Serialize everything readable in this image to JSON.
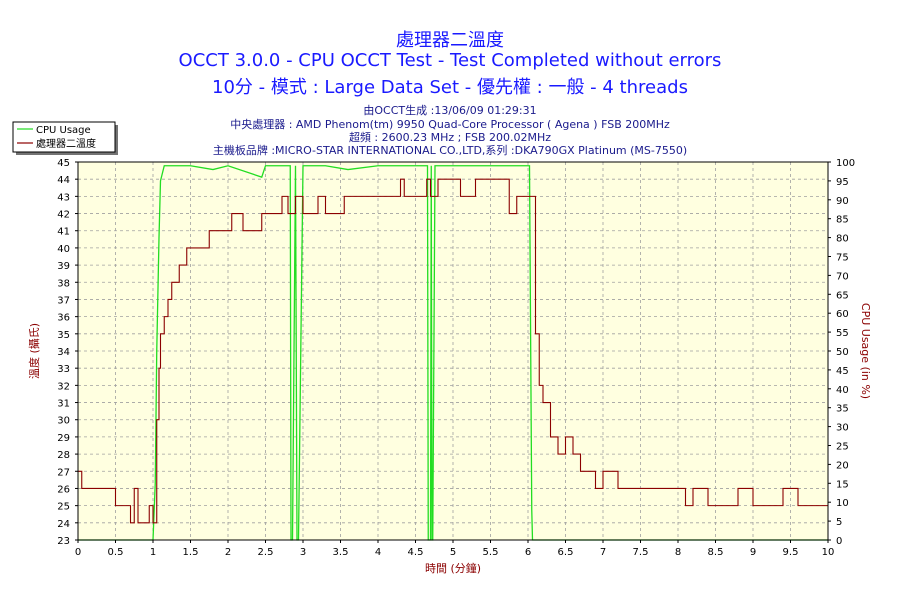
{
  "header": {
    "title_main": "處理器二溫度",
    "title_line2": "OCCT 3.0.0 - CPU OCCT Test - Test Completed without errors",
    "title_line3": "10分 - 模式 : Large Data Set - 優先權 : 一般 - 4 threads",
    "info_generated": "由OCCT生成 :13/06/09 01:29:31",
    "info_cpu": "中央處理器 : AMD Phenom(tm) 9950 Quad-Core Processor ( Agena ) FSB 200MHz",
    "info_clock": "超頻 : 2600.23 MHz ; FSB 200.02MHz",
    "info_board": "主機板品牌 :MICRO-STAR INTERNATIONAL CO.,LTD,系列 :DKA790GX Platinum (MS-7550)"
  },
  "colors": {
    "usage": "#22dd22",
    "temp": "#8b0000",
    "axis_text_left": "#8b0000",
    "axis_text_bottom": "#8b0000",
    "plot_bg": "#ffffe0",
    "grid": "#a0a0a0"
  },
  "chart_data": {
    "type": "line",
    "xlabel": "時間 (分鐘)",
    "ylabel": "溫度 (攝氏)",
    "y2label": "CPU Usage (in %)",
    "xlim": [
      0,
      10
    ],
    "ylim": [
      23,
      45
    ],
    "y2lim": [
      0,
      100
    ],
    "x_ticks": [
      "0",
      "0.5",
      "1",
      "1.5",
      "2",
      "2.5",
      "3",
      "3.5",
      "4",
      "4.5",
      "5",
      "5.5",
      "6",
      "6.5",
      "7",
      "7.5",
      "8",
      "8.5",
      "9",
      "9.5",
      "10"
    ],
    "y_ticks": [
      "23",
      "24",
      "25",
      "26",
      "27",
      "28",
      "29",
      "30",
      "31",
      "32",
      "33",
      "34",
      "35",
      "36",
      "37",
      "38",
      "39",
      "40",
      "41",
      "42",
      "43",
      "44",
      "45"
    ],
    "y2_ticks": [
      "0",
      "5",
      "10",
      "15",
      "20",
      "25",
      "30",
      "35",
      "40",
      "45",
      "50",
      "55",
      "60",
      "65",
      "70",
      "75",
      "80",
      "85",
      "90",
      "95",
      "100"
    ],
    "grid": true,
    "legend_position": "top-left",
    "series": [
      {
        "name": "CPU Usage",
        "axis": "right",
        "x": [
          0,
          0.98,
          1.0,
          1.03,
          1.05,
          1.08,
          1.1,
          1.15,
          1.2,
          1.5,
          1.8,
          2.0,
          2.45,
          2.5,
          2.8,
          2.83,
          2.84,
          2.86,
          2.9,
          2.92,
          2.94,
          3.0,
          3.3,
          3.6,
          4.0,
          4.6,
          4.66,
          4.67,
          4.7,
          4.71,
          4.72,
          4.73,
          4.76,
          5.0,
          5.5,
          5.98,
          6.02,
          6.05,
          6.06,
          10
        ],
        "y": [
          0,
          0,
          0,
          15,
          50,
          80,
          95,
          99,
          99,
          99,
          98,
          99,
          96,
          99,
          99,
          99,
          0,
          0,
          99,
          0,
          0,
          99,
          99,
          98,
          99,
          99,
          99,
          0,
          0,
          99,
          0,
          0,
          99,
          99,
          99,
          99,
          99,
          8,
          0,
          0
        ]
      },
      {
        "name": "處理器二溫度",
        "axis": "left",
        "x": [
          0,
          0.05,
          0.2,
          0.5,
          0.6,
          0.7,
          0.75,
          0.8,
          0.85,
          0.95,
          1.0,
          1.05,
          1.08,
          1.1,
          1.15,
          1.2,
          1.25,
          1.35,
          1.45,
          1.55,
          1.65,
          1.75,
          1.85,
          2.0,
          2.05,
          2.15,
          2.2,
          2.45,
          2.55,
          2.65,
          2.72,
          2.8,
          2.9,
          3.0,
          3.1,
          3.2,
          3.3,
          3.45,
          3.55,
          3.65,
          4.0,
          4.3,
          4.35,
          4.5,
          4.65,
          4.7,
          4.8,
          5.0,
          5.1,
          5.3,
          5.5,
          5.65,
          5.75,
          5.85,
          5.95,
          6.0,
          6.05,
          6.1,
          6.15,
          6.2,
          6.3,
          6.4,
          6.5,
          6.6,
          6.7,
          6.8,
          6.9,
          7.0,
          7.2,
          7.4,
          7.6,
          8.0,
          8.1,
          8.2,
          8.4,
          8.6,
          8.8,
          9.0,
          9.2,
          9.4,
          9.6,
          9.8,
          10.0
        ],
        "y": [
          27,
          26,
          26,
          25,
          25,
          24,
          26,
          24,
          24,
          25,
          24,
          30,
          33,
          35,
          36,
          37,
          38,
          39,
          40,
          40,
          40,
          41,
          41,
          41,
          42,
          42,
          41,
          42,
          42,
          42,
          43,
          42,
          43,
          42,
          42,
          43,
          42,
          42,
          43,
          43,
          43,
          44,
          43,
          43,
          44,
          43,
          44,
          44,
          43,
          44,
          44,
          44,
          42,
          43,
          43,
          43,
          43,
          35,
          32,
          31,
          29,
          28,
          29,
          28,
          27,
          27,
          26,
          27,
          26,
          26,
          26,
          26,
          25,
          26,
          25,
          25,
          26,
          25,
          25,
          26,
          25,
          25,
          25
        ]
      }
    ]
  }
}
